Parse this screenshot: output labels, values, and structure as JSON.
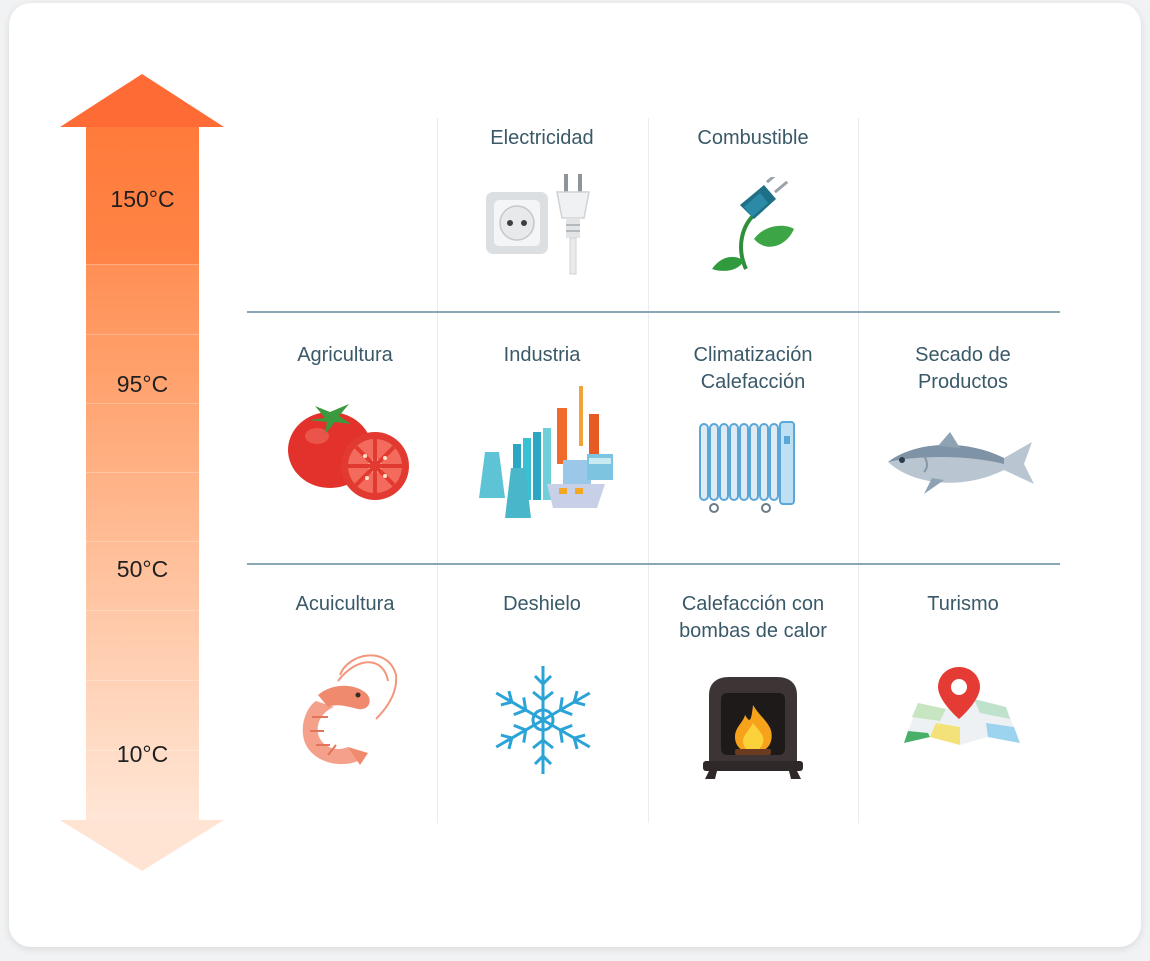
{
  "scale": {
    "labels": [
      "150°C",
      "95°C",
      "50°C",
      "10°C"
    ],
    "colors": [
      "#ff7a3a",
      "#ffa36e",
      "#ffbd94",
      "#ffd6bf",
      "#ffe9dd"
    ]
  },
  "rows": [
    [
      null,
      {
        "title": "Electricidad",
        "icon": "power-outlet-plug-icon"
      },
      {
        "title": "Combustible",
        "icon": "plant-plug-icon"
      },
      null
    ],
    [
      {
        "title": "Agricultura",
        "icon": "tomato-icon"
      },
      {
        "title": "Industria",
        "icon": "factory-icon"
      },
      {
        "title": "Climatización\nCalefacción",
        "icon": "radiator-icon"
      },
      {
        "title": "Secado de\nProductos",
        "icon": "fish-icon"
      }
    ],
    [
      {
        "title": "Acuicultura",
        "icon": "shrimp-icon"
      },
      {
        "title": "Deshielo",
        "icon": "snowflake-icon"
      },
      {
        "title": "Calefacción con\nbombas de calor",
        "icon": "fireplace-icon"
      },
      {
        "title": "Turismo",
        "icon": "map-pin-icon"
      }
    ]
  ]
}
